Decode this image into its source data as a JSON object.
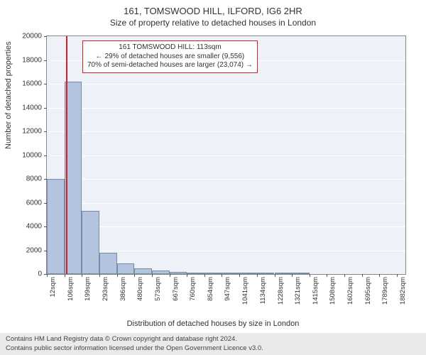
{
  "header": {
    "title": "161, TOMSWOOD HILL, ILFORD, IG6 2HR",
    "subtitle": "Size of property relative to detached houses in London"
  },
  "chart": {
    "type": "histogram",
    "background_color": "#eef2f8",
    "grid_color": "#ffffff",
    "border_color": "#888888",
    "bar_fill": "#b2c4de",
    "bar_border": "#7a8aa8",
    "marker_color": "#d62020",
    "ylabel": "Number of detached properties",
    "xlabel": "Distribution of detached houses by size in London",
    "ylim": [
      0,
      20000
    ],
    "ytick_step": 2000,
    "yticks": [
      0,
      2000,
      4000,
      6000,
      8000,
      10000,
      12000,
      14000,
      16000,
      18000,
      20000
    ],
    "xticks": [
      "12sqm",
      "106sqm",
      "199sqm",
      "293sqm",
      "386sqm",
      "480sqm",
      "573sqm",
      "667sqm",
      "760sqm",
      "854sqm",
      "947sqm",
      "1041sqm",
      "1134sqm",
      "1228sqm",
      "1321sqm",
      "1415sqm",
      "1508sqm",
      "1602sqm",
      "1695sqm",
      "1789sqm",
      "1882sqm"
    ],
    "x_range": [
      12,
      1928
    ],
    "marker_value": 113,
    "bars": [
      {
        "x0": 12,
        "x1": 106,
        "y": 8000
      },
      {
        "x0": 106,
        "x1": 199,
        "y": 16200
      },
      {
        "x0": 199,
        "x1": 293,
        "y": 5300
      },
      {
        "x0": 293,
        "x1": 386,
        "y": 1800
      },
      {
        "x0": 386,
        "x1": 480,
        "y": 900
      },
      {
        "x0": 480,
        "x1": 573,
        "y": 500
      },
      {
        "x0": 573,
        "x1": 667,
        "y": 300
      },
      {
        "x0": 667,
        "x1": 760,
        "y": 200
      },
      {
        "x0": 760,
        "x1": 854,
        "y": 150
      },
      {
        "x0": 854,
        "x1": 947,
        "y": 100
      },
      {
        "x0": 947,
        "x1": 1041,
        "y": 80
      },
      {
        "x0": 1041,
        "x1": 1134,
        "y": 60
      },
      {
        "x0": 1134,
        "x1": 1228,
        "y": 40
      },
      {
        "x0": 1228,
        "x1": 1321,
        "y": 30
      },
      {
        "x0": 1321,
        "x1": 1415,
        "y": 20
      }
    ],
    "annotation": {
      "line1": "161 TOMSWOOD HILL: 113sqm",
      "line2": "← 29% of detached houses are smaller (9,556)",
      "line3": "70% of semi-detached houses are larger (23,074) →",
      "box_bg": "#ffffff",
      "box_border": "#d62020"
    }
  },
  "footer": {
    "line1": "Contains HM Land Registry data © Crown copyright and database right 2024.",
    "line2": "Contains public sector information licensed under the Open Government Licence v3.0."
  }
}
